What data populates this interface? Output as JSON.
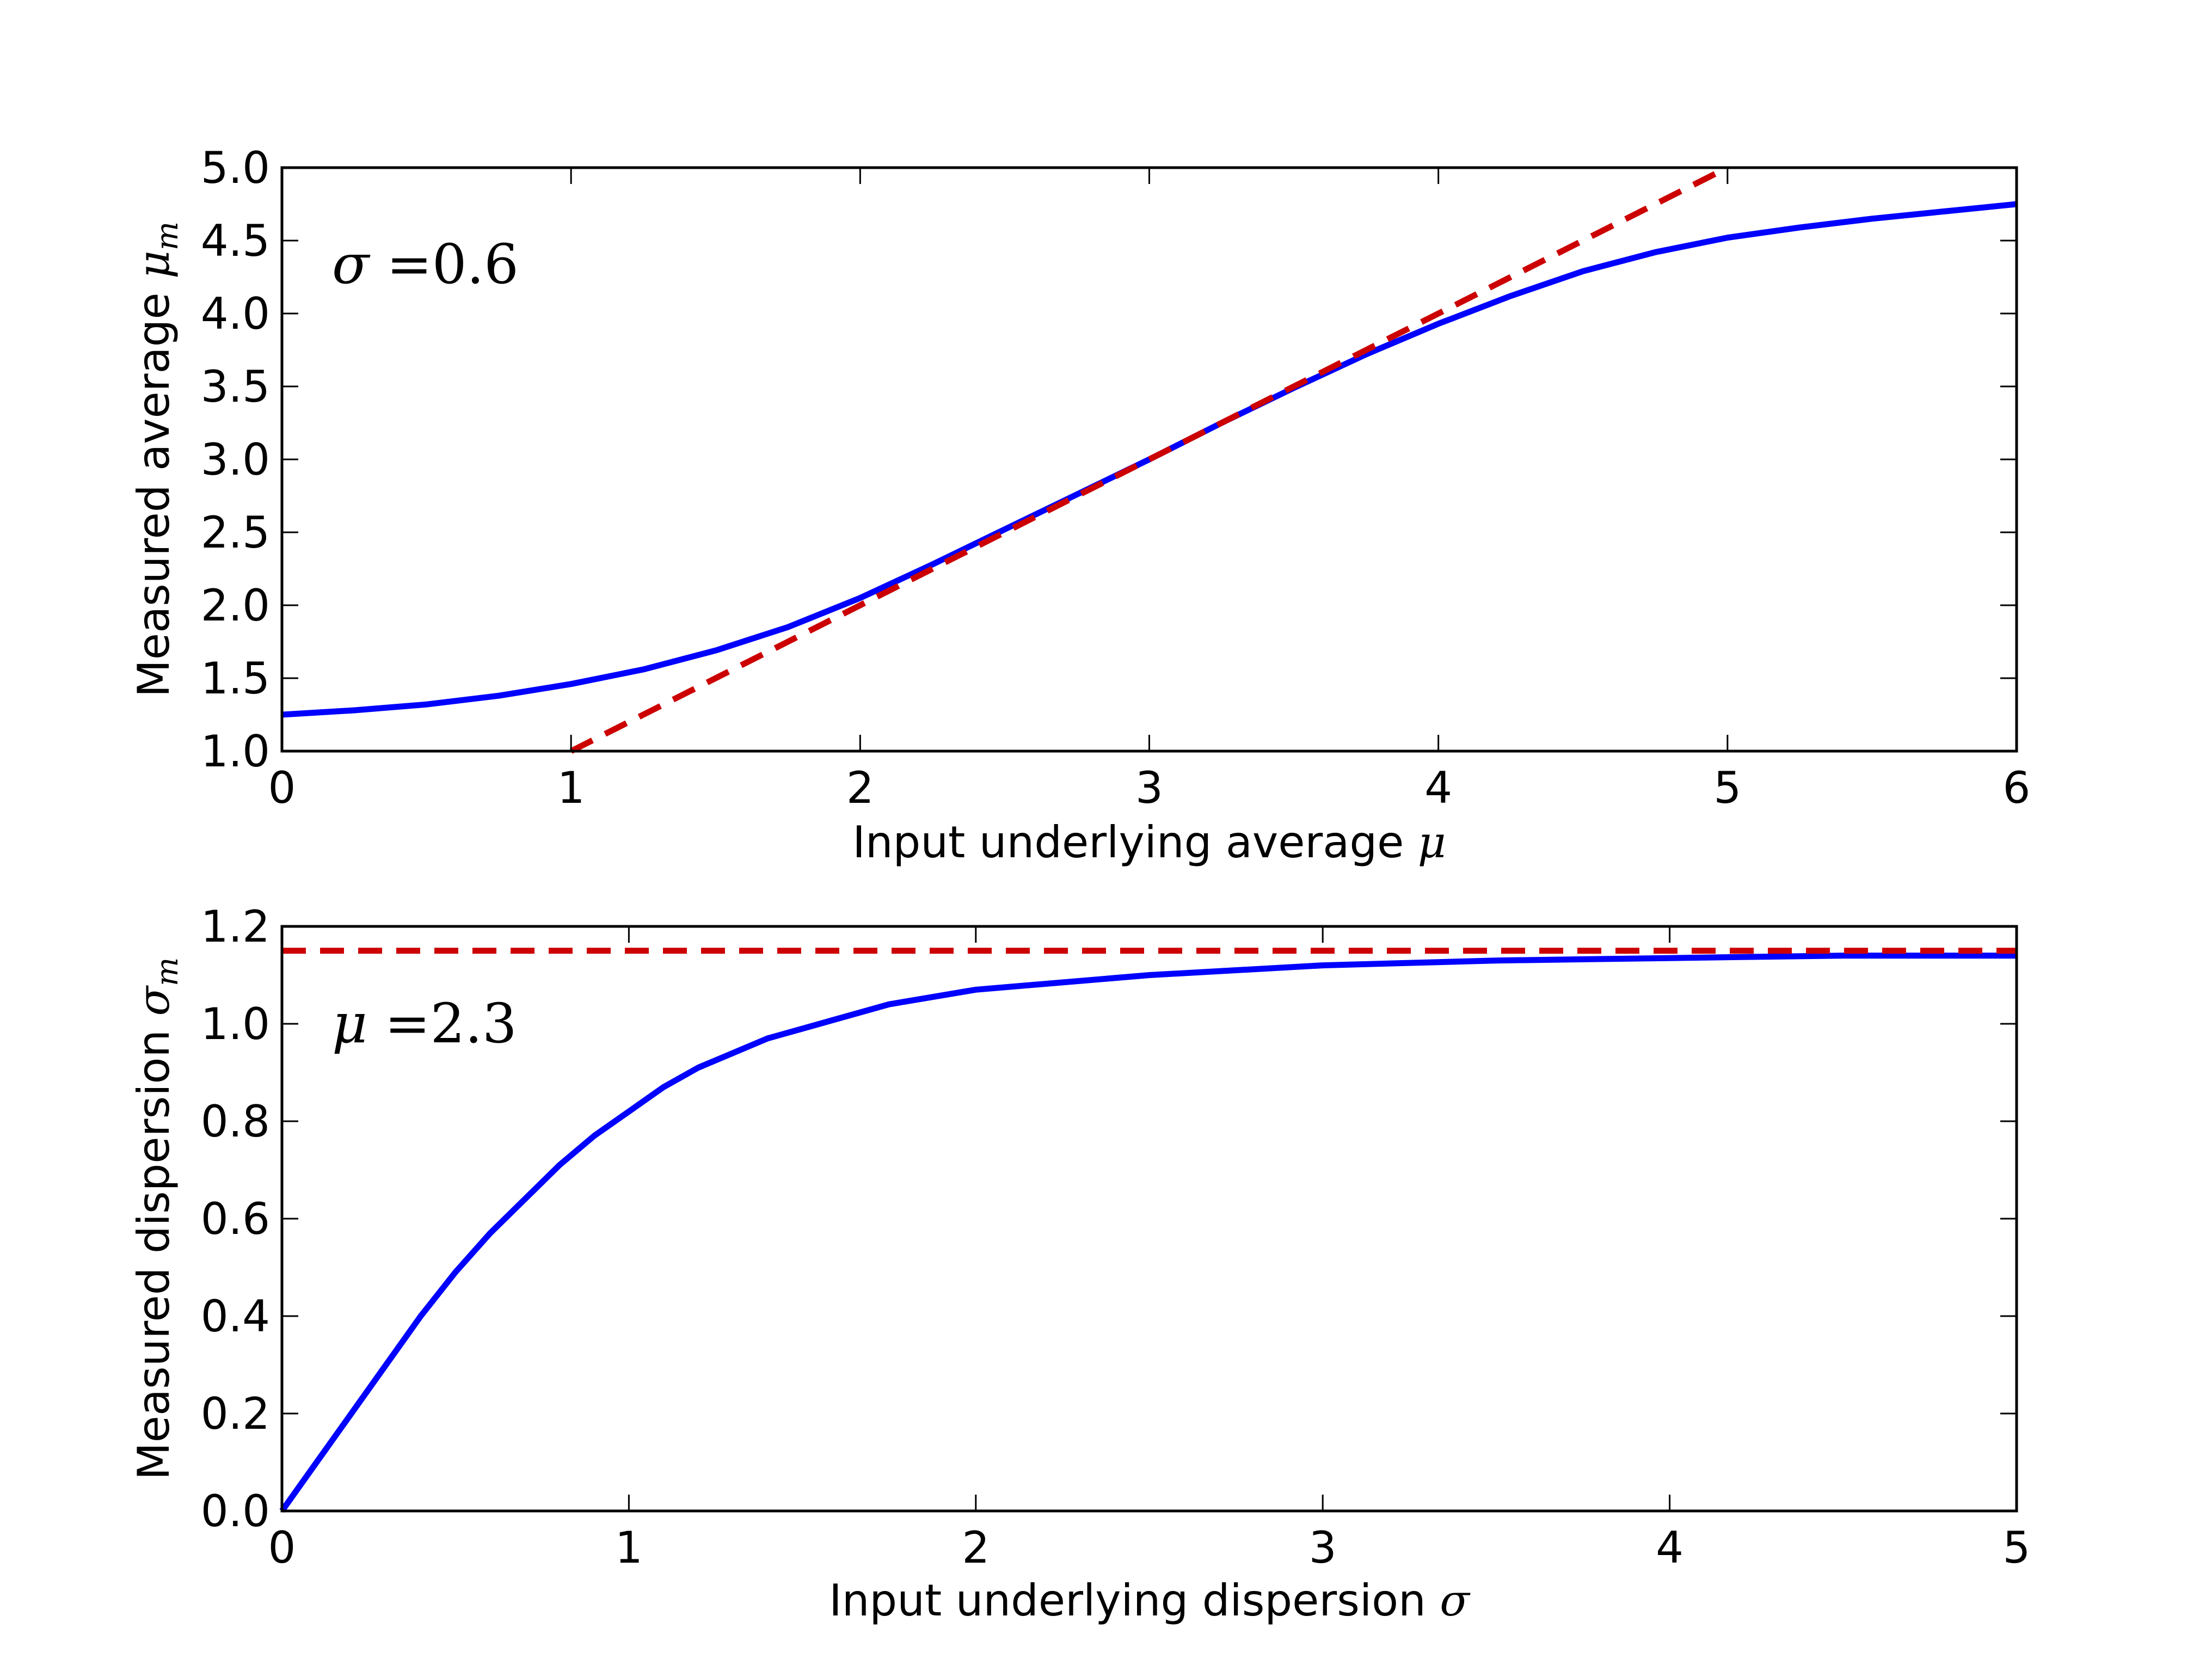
{
  "chart_data": [
    {
      "type": "line",
      "title": "",
      "xlabel": "Input underlying average",
      "xlabel_symbol": "μ",
      "ylabel": "Measured average",
      "ylabel_symbol": "μ",
      "ylabel_subscript": "m",
      "xlim": [
        0,
        6
      ],
      "ylim": [
        1.0,
        5.0
      ],
      "xticks": [
        "0",
        "1",
        "2",
        "3",
        "4",
        "5",
        "6"
      ],
      "yticks": [
        "1.0",
        "1.5",
        "2.0",
        "2.5",
        "3.0",
        "3.5",
        "4.0",
        "4.5",
        "5.0"
      ],
      "annotation": "σ =0.6",
      "grid": false,
      "series": [
        {
          "style": "solid",
          "color": "#0000ff",
          "x": [
            0,
            0.25,
            0.5,
            0.75,
            1.0,
            1.25,
            1.5,
            1.75,
            2.0,
            2.25,
            2.5,
            2.75,
            3.0,
            3.25,
            3.5,
            3.75,
            4.0,
            4.25,
            4.5,
            4.75,
            5.0,
            5.25,
            5.5,
            5.75,
            6.0
          ],
          "y": [
            1.25,
            1.28,
            1.32,
            1.38,
            1.46,
            1.56,
            1.69,
            1.85,
            2.05,
            2.28,
            2.52,
            2.76,
            3.0,
            3.25,
            3.49,
            3.72,
            3.93,
            4.12,
            4.29,
            4.42,
            4.52,
            4.59,
            4.65,
            4.7,
            4.75
          ]
        },
        {
          "style": "dashed",
          "color": "#cc0000",
          "x": [
            1.0,
            5.0
          ],
          "y": [
            1.0,
            5.0
          ]
        }
      ]
    },
    {
      "type": "line",
      "title": "",
      "xlabel": "Input underlying dispersion",
      "xlabel_symbol": "σ",
      "ylabel": "Measured dispersion",
      "ylabel_symbol": "σ",
      "ylabel_subscript": "m",
      "xlim": [
        0,
        5
      ],
      "ylim": [
        0.0,
        1.2
      ],
      "xticks": [
        "0",
        "1",
        "2",
        "3",
        "4",
        "5"
      ],
      "yticks": [
        "0.0",
        "0.2",
        "0.4",
        "0.6",
        "0.8",
        "1.0",
        "1.2"
      ],
      "annotation": "μ =2.3",
      "grid": false,
      "series": [
        {
          "style": "solid",
          "color": "#0000ff",
          "x": [
            0,
            0.1,
            0.2,
            0.3,
            0.4,
            0.5,
            0.6,
            0.7,
            0.8,
            0.9,
            1.0,
            1.1,
            1.2,
            1.3,
            1.4,
            1.5,
            1.75,
            2.0,
            2.5,
            3.0,
            3.5,
            4.0,
            4.5,
            5.0
          ],
          "y": [
            0.0,
            0.1,
            0.2,
            0.3,
            0.4,
            0.49,
            0.57,
            0.64,
            0.71,
            0.77,
            0.82,
            0.87,
            0.91,
            0.94,
            0.97,
            0.99,
            1.04,
            1.07,
            1.1,
            1.12,
            1.13,
            1.135,
            1.14,
            1.14
          ]
        },
        {
          "style": "dashed",
          "color": "#cc0000",
          "x": [
            0,
            5
          ],
          "y": [
            1.15,
            1.15
          ]
        }
      ]
    }
  ]
}
